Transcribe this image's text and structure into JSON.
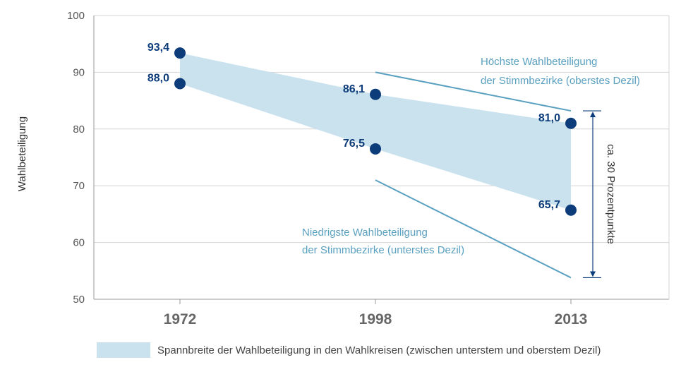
{
  "chart_data": {
    "type": "line",
    "title": "",
    "ylabel": "Wahlbeteiligung",
    "xlabel": "",
    "ylim": [
      50,
      100
    ],
    "yticks": [
      50,
      60,
      70,
      80,
      90,
      100
    ],
    "grid": true,
    "categories": [
      "1972",
      "1998",
      "2013"
    ],
    "series": [
      {
        "values": [
          93.4,
          86.1,
          81.0
        ],
        "labels": [
          "93,4",
          "86,1",
          "81,0"
        ]
      },
      {
        "values": [
          88.0,
          76.5,
          65.7
        ],
        "labels": [
          "88,0",
          "76,5",
          "65,7"
        ]
      }
    ],
    "decile_lines": {
      "highest": {
        "category_from": "1998",
        "category_to": "2013",
        "values": [
          90.0,
          83.2
        ]
      },
      "lowest": {
        "category_from": "1998",
        "category_to": "2013",
        "values": [
          71.0,
          53.8
        ]
      }
    },
    "annotations": {
      "highest_line1": "Höchste Wahlbeteiligung",
      "highest_line2": "der Stimmbezirke (oberstes Dezil)",
      "lowest_line1": "Niedrigste Wahlbeteiligung",
      "lowest_line2": "der Stimmbezirke (unterstes Dezil)",
      "span_label": "ca. 30 Prozentpunkte",
      "span_range": [
        83.2,
        53.8
      ]
    },
    "legend": {
      "placement": "bottom",
      "entry": "Spannbreite der Wahlbeteiligung in den Wahlkreisen (zwischen unterstem und oberstem Dezil)"
    },
    "colors": {
      "band": "#c9e2ee",
      "point": "#0d3c7a",
      "decile_line": "#5aa0c0",
      "grid": "#d4d4d4",
      "arrow": "#0d3c7a"
    }
  }
}
